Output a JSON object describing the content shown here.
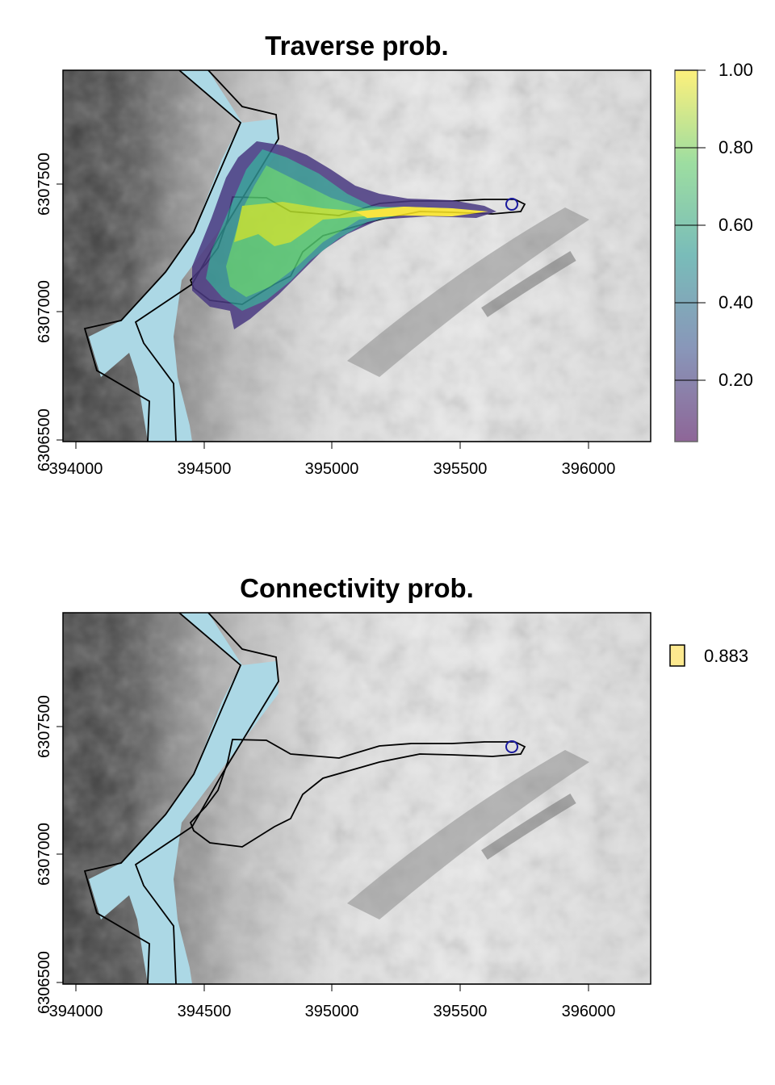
{
  "panels": [
    {
      "title": "Traverse prob.",
      "x_ticks": [
        "394000",
        "394500",
        "395000",
        "395500",
        "396000"
      ],
      "y_ticks": [
        "6306500",
        "6307000",
        "6307500"
      ],
      "legend_type": "colorbar",
      "colorbar_labels": [
        "1.00",
        "0.80",
        "0.60",
        "0.40",
        "0.20"
      ]
    },
    {
      "title": "Connectivity prob.",
      "x_ticks": [
        "394000",
        "394500",
        "395000",
        "395500",
        "396000"
      ],
      "y_ticks": [
        "6306500",
        "6307000",
        "6307500"
      ],
      "legend_type": "swatch",
      "legend_label": "0.883",
      "swatch_color": "#fde98f"
    }
  ],
  "colors": {
    "river": "#acd8e5",
    "viridis": [
      "#440154",
      "#3b528b",
      "#21908c",
      "#5dc863",
      "#fde725"
    ],
    "source_point": "#1a1a9e"
  },
  "chart_data": [
    {
      "type": "heatmap",
      "title": "Traverse prob.",
      "xlim": [
        393950,
        396250
      ],
      "ylim": [
        6306450,
        6307900
      ],
      "color_range": [
        0.04,
        1.0
      ],
      "source_point": {
        "x": 395700,
        "y": 6307420
      }
    },
    {
      "type": "heatmap",
      "title": "Connectivity prob.",
      "xlim": [
        393950,
        396250
      ],
      "ylim": [
        6306450,
        6307900
      ],
      "value": 0.883,
      "source_point": {
        "x": 395700,
        "y": 6307420
      }
    }
  ]
}
